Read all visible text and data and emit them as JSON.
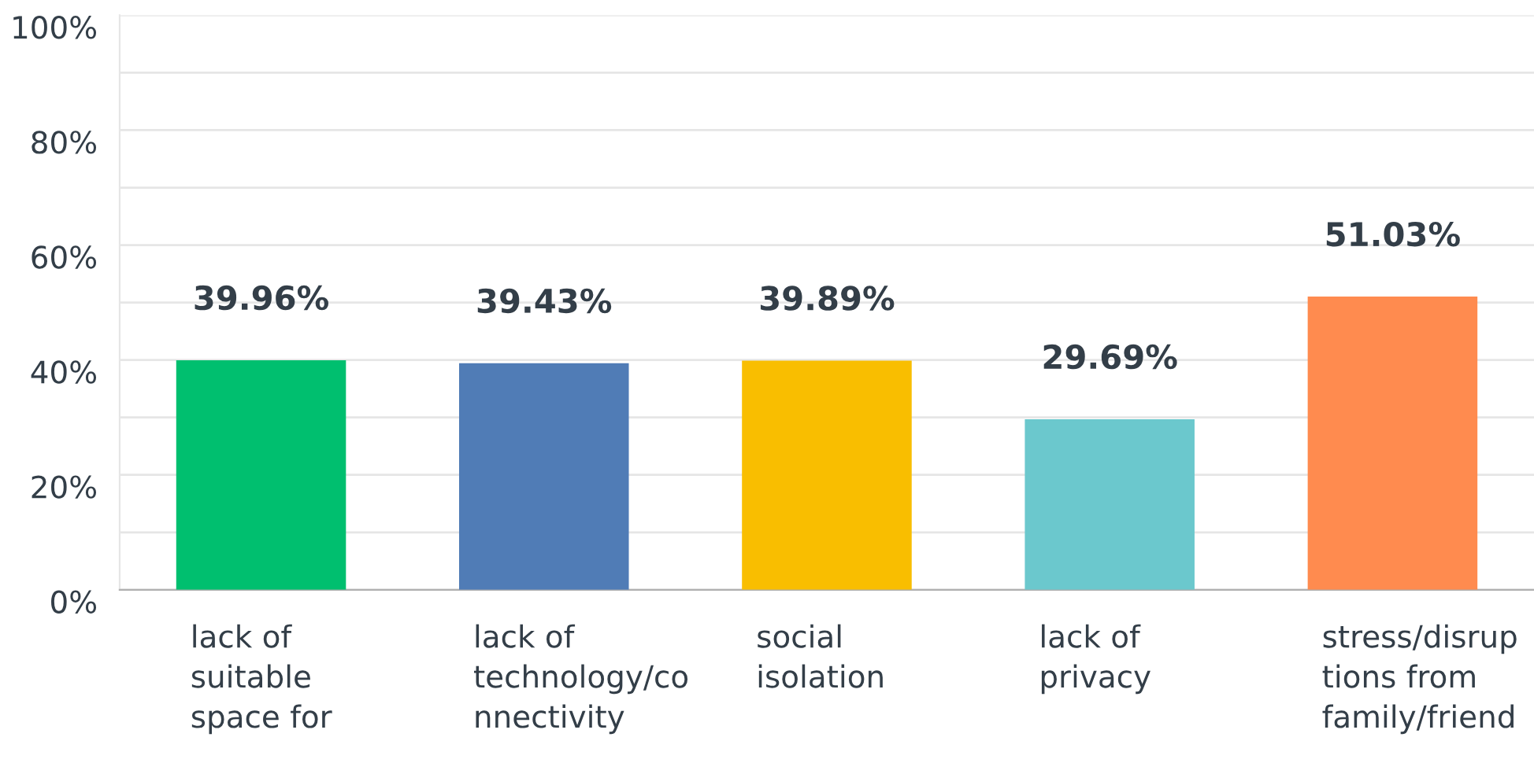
{
  "chart_data": {
    "type": "bar",
    "categories": [
      "lack of\nsuitable\nspace for",
      "lack of\ntechnology/co\nnnectivity",
      "social\nisolation",
      "lack of\nprivacy",
      "stress/disrup\ntions from\nfamily/friend"
    ],
    "values": [
      39.96,
      39.43,
      39.89,
      29.69,
      51.03
    ],
    "colors": [
      "#00bf6f",
      "#507cb6",
      "#f9be00",
      "#6bc8cd",
      "#ff8b4f"
    ],
    "value_labels": [
      "39.96%",
      "39.43%",
      "39.89%",
      "29.69%",
      "51.03%"
    ],
    "ylim": [
      0,
      100
    ],
    "yticks": [
      {
        "value": 0,
        "label": "0%"
      },
      {
        "value": 10,
        "label": null
      },
      {
        "value": 20,
        "label": "20%"
      },
      {
        "value": 30,
        "label": null
      },
      {
        "value": 40,
        "label": "40%"
      },
      {
        "value": 50,
        "label": null
      },
      {
        "value": 60,
        "label": "60%"
      },
      {
        "value": 70,
        "label": null
      },
      {
        "value": 80,
        "label": "80%"
      },
      {
        "value": 90,
        "label": null
      },
      {
        "value": 100,
        "label": "100%"
      }
    ],
    "grid": "y",
    "legend": false
  }
}
